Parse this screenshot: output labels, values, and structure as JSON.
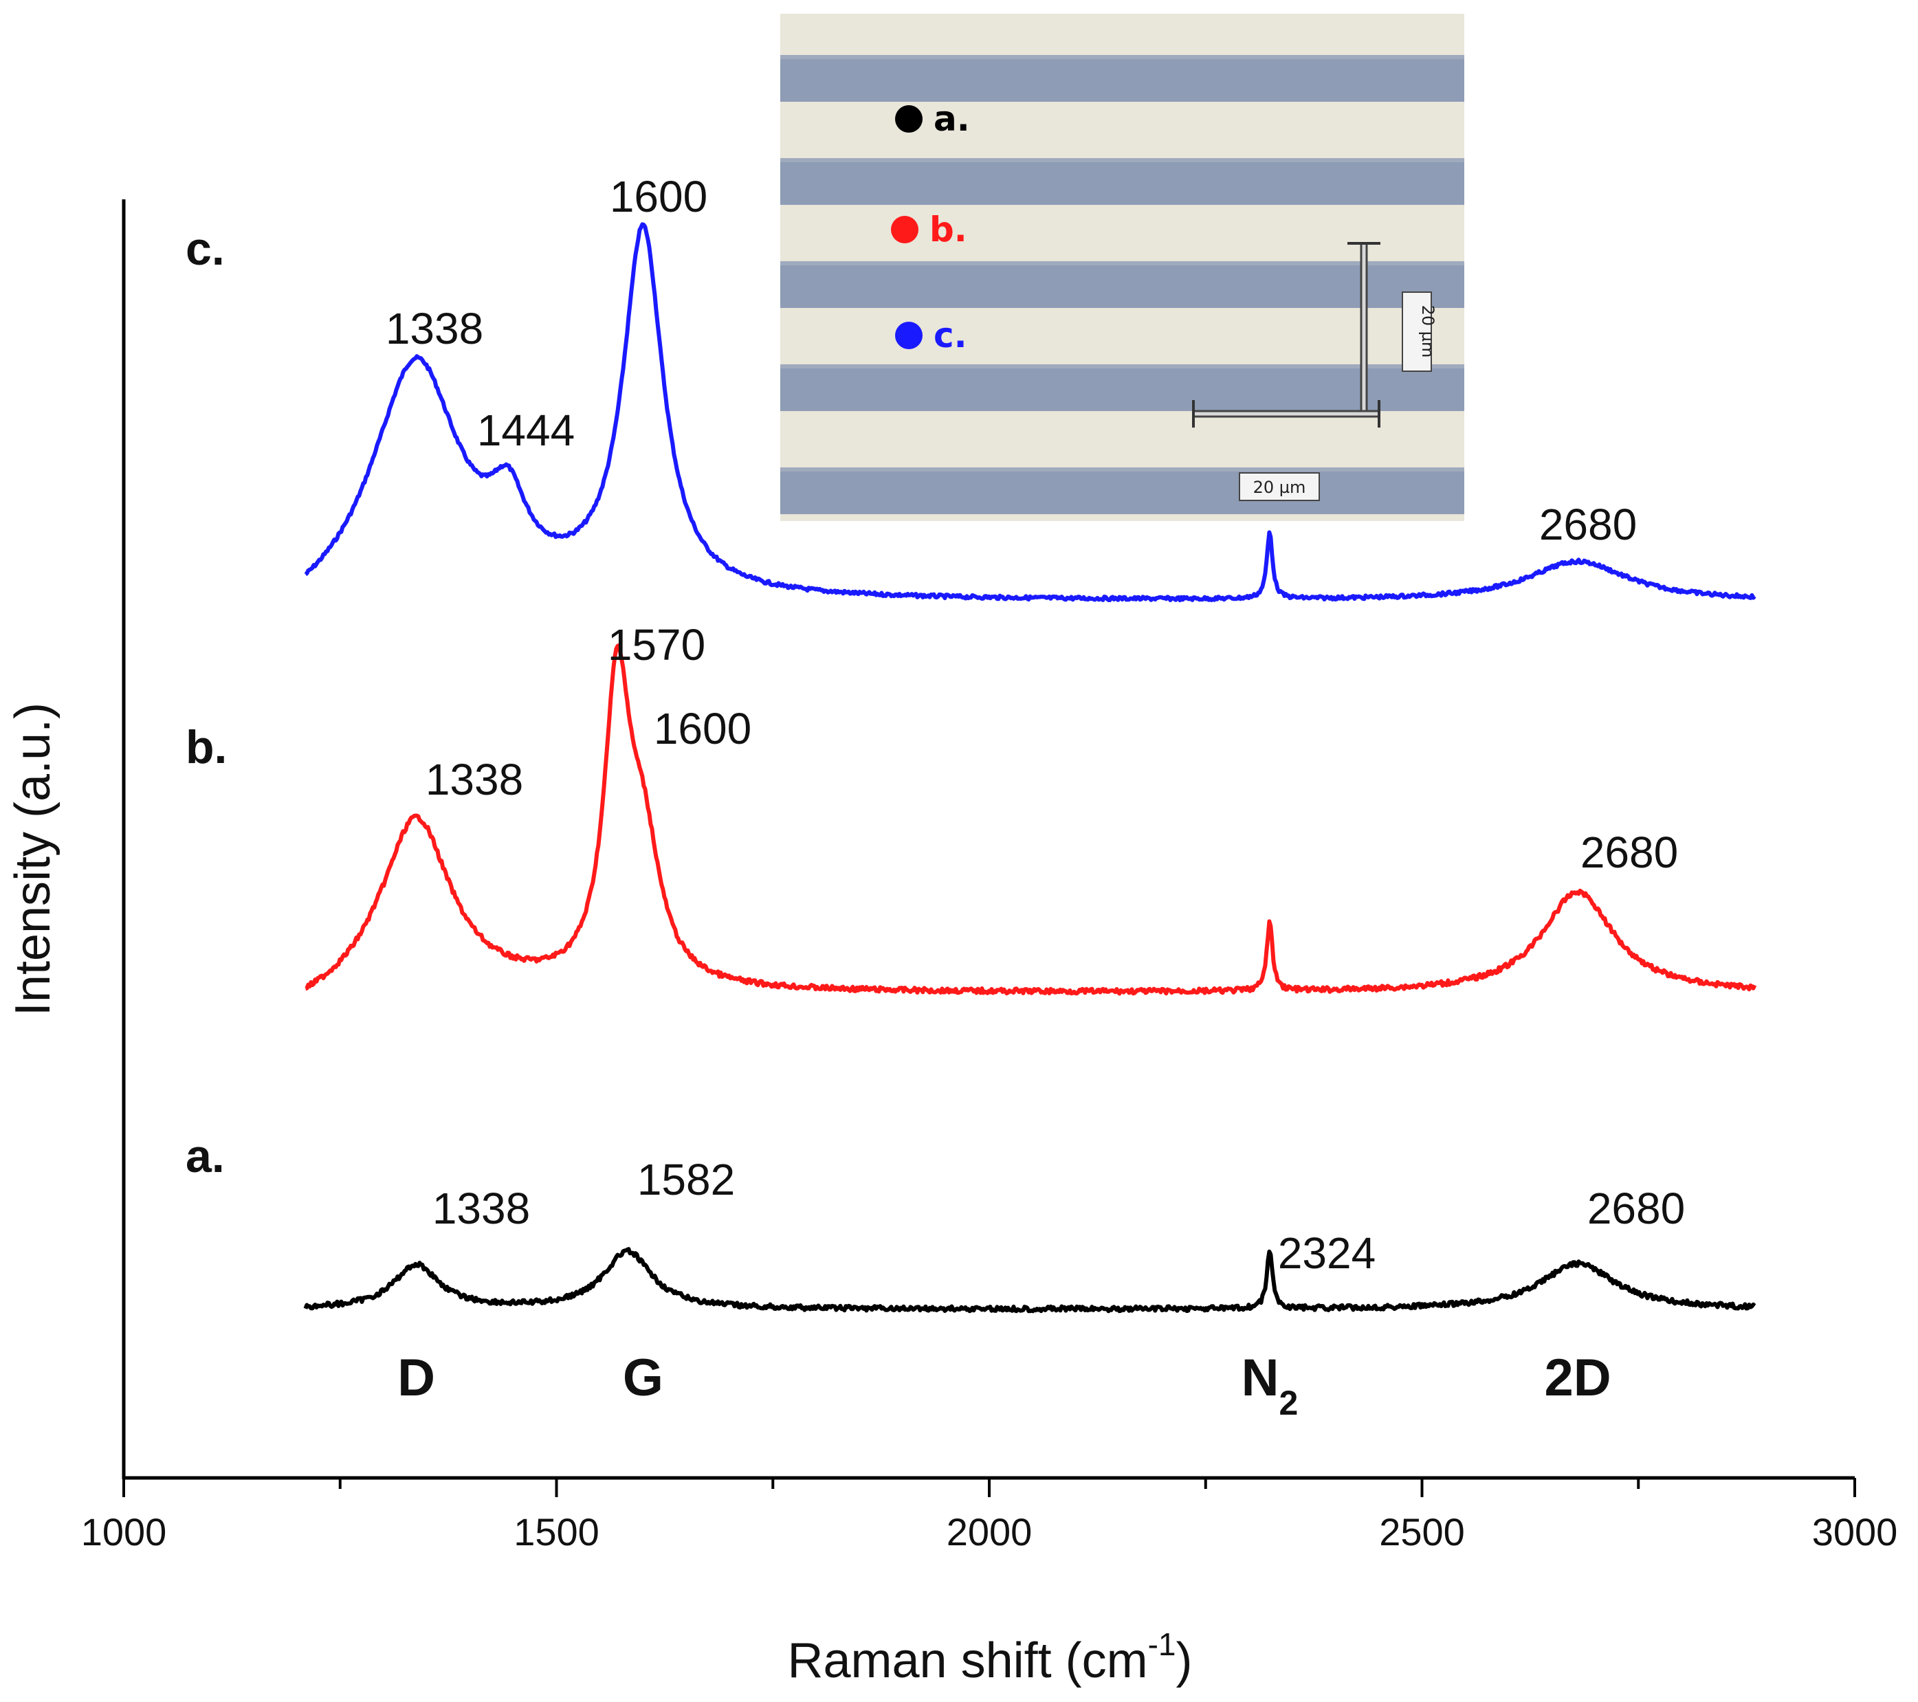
{
  "chart_data": {
    "type": "line",
    "xlabel": "Raman shift (cm",
    "xlabel_sup": "-1",
    "xlabel_end": ")",
    "ylabel": "Intensity (a.u.)",
    "xlim": [
      1000,
      3000
    ],
    "x_ticks": [
      "1000",
      "1500",
      "2000",
      "2500",
      "3000"
    ],
    "grid": false,
    "series": [
      {
        "name": "c.",
        "color": "#1a1aff",
        "peaks": [
          {
            "x": 1338,
            "height": 0.78,
            "width": 60,
            "label": "1338"
          },
          {
            "x": 1444,
            "height": 0.22,
            "width": 25,
            "label": "1444"
          },
          {
            "x": 1600,
            "height": 1.2,
            "width": 28,
            "label": "1600"
          },
          {
            "x": 2324,
            "height": 0.22,
            "width": 4
          },
          {
            "x": 2680,
            "height": 0.13,
            "width": 70,
            "label": "2680"
          }
        ]
      },
      {
        "name": "b.",
        "color": "#ff1a1a",
        "peaks": [
          {
            "x": 1338,
            "height": 0.6,
            "width": 48,
            "label": "1338"
          },
          {
            "x": 1570,
            "height": 1.0,
            "width": 18,
            "label": "1570"
          },
          {
            "x": 1600,
            "height": 0.45,
            "width": 24,
            "label": "1600"
          },
          {
            "x": 2324,
            "height": 0.24,
            "width": 4
          },
          {
            "x": 2680,
            "height": 0.35,
            "width": 50,
            "label": "2680"
          }
        ]
      },
      {
        "name": "a.",
        "color": "#000000",
        "peaks": [
          {
            "x": 1338,
            "height": 0.23,
            "width": 32,
            "label": "1338"
          },
          {
            "x": 1582,
            "height": 0.3,
            "width": 34,
            "label": "1582"
          },
          {
            "x": 2324,
            "height": 0.3,
            "width": 4,
            "label": "2324"
          },
          {
            "x": 2680,
            "height": 0.24,
            "width": 52,
            "label": "2680"
          }
        ]
      }
    ],
    "bands": [
      {
        "text": "D",
        "x": 1338
      },
      {
        "text": "G",
        "x": 1600
      },
      {
        "text": "N",
        "sub": "2",
        "x": 2324
      },
      {
        "text": "2D",
        "x": 2680
      }
    ]
  },
  "inset": {
    "points": [
      {
        "label": "a.",
        "color": "#000000"
      },
      {
        "label": "b.",
        "color": "#ff1a1a"
      },
      {
        "label": "c.",
        "color": "#1a1aff"
      }
    ],
    "scale_x_label": "20 µm",
    "scale_y_label": "20 µm"
  }
}
